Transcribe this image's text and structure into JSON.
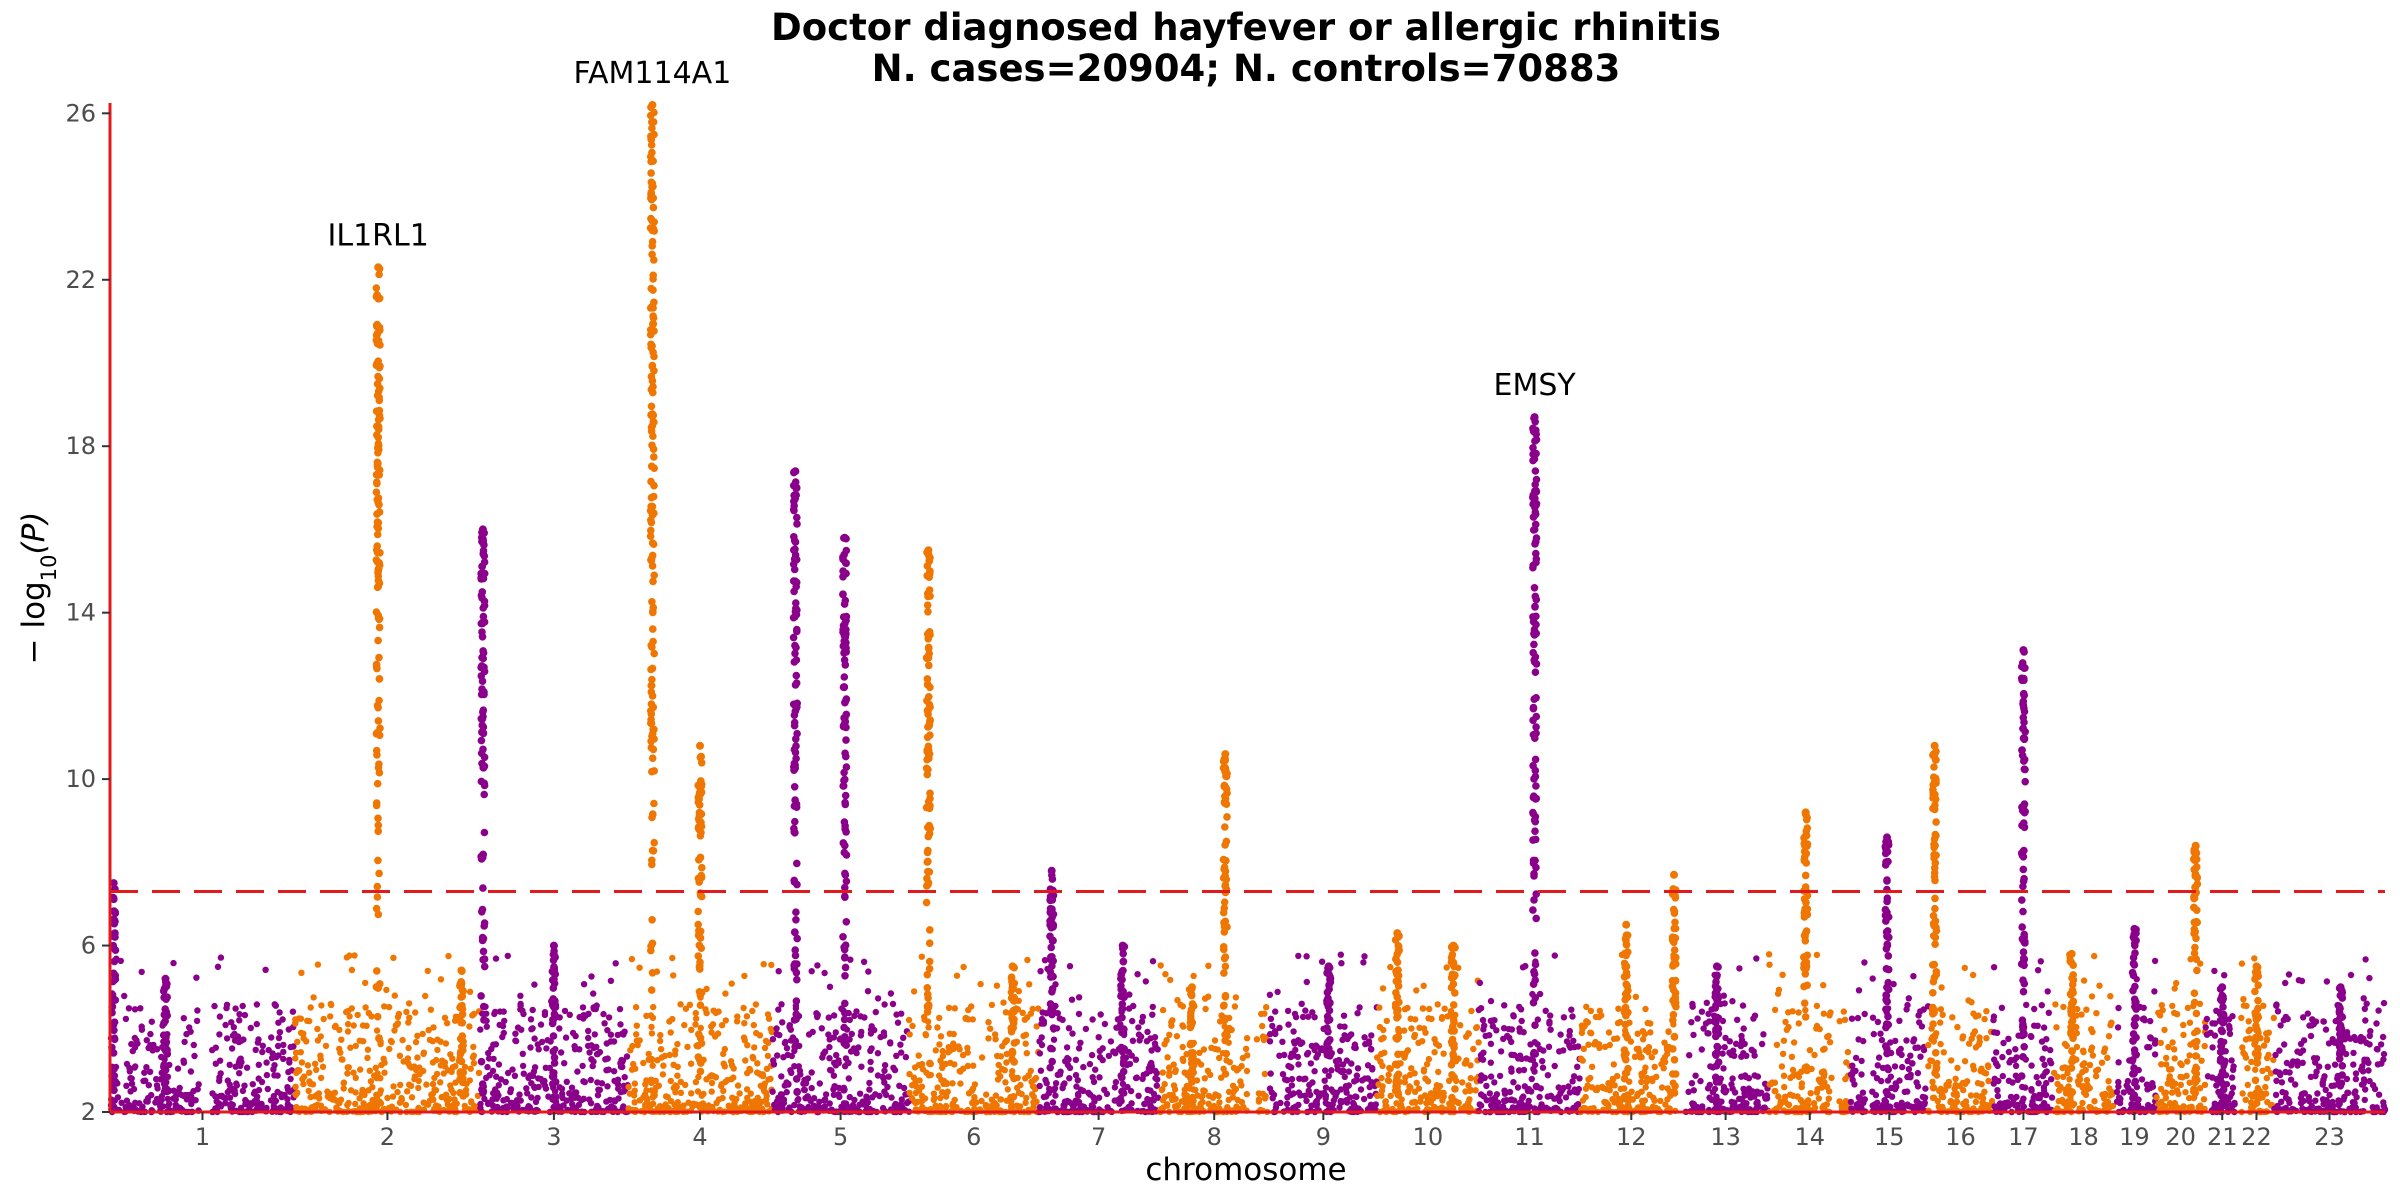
{
  "chart_data": {
    "type": "scatter",
    "title": "Doctor diagnosed hayfever or allergic rhinitis",
    "subtitle": "N. cases=20904; N. controls=70883",
    "xlabel": "chromosome",
    "ylabel_prefix": "− log",
    "ylabel_sub": "10",
    "ylabel_suffix": "(P)",
    "ylim": [
      2,
      26.2
    ],
    "yticks": [
      2,
      6,
      10,
      14,
      18,
      22,
      26
    ],
    "significance_threshold": 7.3,
    "colors": {
      "odd": "#8b008b",
      "even": "#ef7600",
      "axis": "#e31a1c",
      "threshold": "#e31a1c"
    },
    "grid": false,
    "legend": "none",
    "chromosomes": [
      {
        "label": "1",
        "start": 0.0,
        "end": 1.0,
        "peaks": [
          [
            0.02,
            7.5
          ],
          [
            0.3,
            5.2
          ]
        ]
      },
      {
        "label": "2",
        "start": 1.0,
        "end": 2.0,
        "peaks": [
          [
            0.45,
            22.3
          ],
          [
            0.9,
            5.4
          ]
        ]
      },
      {
        "label": "3",
        "start": 2.0,
        "end": 2.8,
        "peaks": [
          [
            0.02,
            16.0
          ],
          [
            0.5,
            6.0
          ]
        ]
      },
      {
        "label": "4",
        "start": 2.8,
        "end": 3.58,
        "peaks": [
          [
            0.17,
            26.2
          ],
          [
            0.5,
            10.8
          ]
        ]
      },
      {
        "label": "5",
        "start": 3.58,
        "end": 4.32,
        "peaks": [
          [
            0.17,
            17.4
          ],
          [
            0.53,
            15.8
          ]
        ]
      },
      {
        "label": "6",
        "start": 4.32,
        "end": 5.02,
        "peaks": [
          [
            0.15,
            15.5
          ],
          [
            0.8,
            5.5
          ]
        ]
      },
      {
        "label": "7",
        "start": 5.02,
        "end": 5.67,
        "peaks": [
          [
            0.11,
            7.8
          ],
          [
            0.7,
            6.0
          ]
        ]
      },
      {
        "label": "8",
        "start": 5.67,
        "end": 6.27,
        "peaks": [
          [
            0.6,
            10.6
          ],
          [
            0.3,
            5.0
          ]
        ]
      },
      {
        "label": "9",
        "start": 6.27,
        "end": 6.85,
        "peaks": [
          [
            0.55,
            5.5
          ]
        ]
      },
      {
        "label": "10",
        "start": 6.85,
        "end": 7.4,
        "peaks": [
          [
            0.2,
            6.3
          ],
          [
            0.75,
            6.0
          ]
        ]
      },
      {
        "label": "11",
        "start": 7.4,
        "end": 7.95,
        "peaks": [
          [
            0.55,
            18.7
          ]
        ]
      },
      {
        "label": "12",
        "start": 7.95,
        "end": 8.5,
        "peaks": [
          [
            0.45,
            6.5
          ],
          [
            0.92,
            7.7
          ]
        ]
      },
      {
        "label": "13",
        "start": 8.5,
        "end": 8.97,
        "peaks": [
          [
            0.4,
            5.5
          ]
        ]
      },
      {
        "label": "14",
        "start": 8.97,
        "end": 9.41,
        "peaks": [
          [
            0.45,
            9.2
          ]
        ]
      },
      {
        "label": "15",
        "start": 9.41,
        "end": 9.83,
        "peaks": [
          [
            0.47,
            8.6
          ]
        ]
      },
      {
        "label": "16",
        "start": 9.83,
        "end": 10.18,
        "peaks": [
          [
            0.1,
            10.8
          ]
        ]
      },
      {
        "label": "17",
        "start": 10.18,
        "end": 10.51,
        "peaks": [
          [
            0.5,
            13.1
          ]
        ]
      },
      {
        "label": "18",
        "start": 10.51,
        "end": 10.83,
        "peaks": [
          [
            0.3,
            5.8
          ]
        ]
      },
      {
        "label": "19",
        "start": 10.83,
        "end": 11.06,
        "peaks": [
          [
            0.5,
            6.4
          ]
        ]
      },
      {
        "label": "20",
        "start": 11.06,
        "end": 11.33,
        "peaks": [
          [
            0.8,
            8.4
          ]
        ]
      },
      {
        "label": "21",
        "start": 11.33,
        "end": 11.51,
        "peaks": [
          [
            0.5,
            5.0
          ]
        ]
      },
      {
        "label": "22",
        "start": 11.51,
        "end": 11.7,
        "peaks": [
          [
            0.5,
            5.5
          ]
        ]
      },
      {
        "label": "23",
        "start": 11.7,
        "end": 12.3,
        "peaks": [
          [
            0.6,
            5.0
          ]
        ]
      }
    ],
    "gaps": [
      [
        0.48,
        0.55
      ],
      [
        6.15,
        6.2
      ],
      [
        8.47,
        8.52
      ],
      [
        9.31,
        9.35
      ],
      [
        9.49,
        9.52
      ],
      [
        10.83,
        10.85
      ],
      [
        11.49,
        11.52
      ]
    ],
    "annotations": [
      {
        "text": "IL1RL1",
        "chromosome": "2",
        "value": 22.3
      },
      {
        "text": "FAM114A1",
        "chromosome": "4",
        "value": 26.2
      },
      {
        "text": "EMSY",
        "chromosome": "11",
        "value": 18.7
      }
    ]
  }
}
